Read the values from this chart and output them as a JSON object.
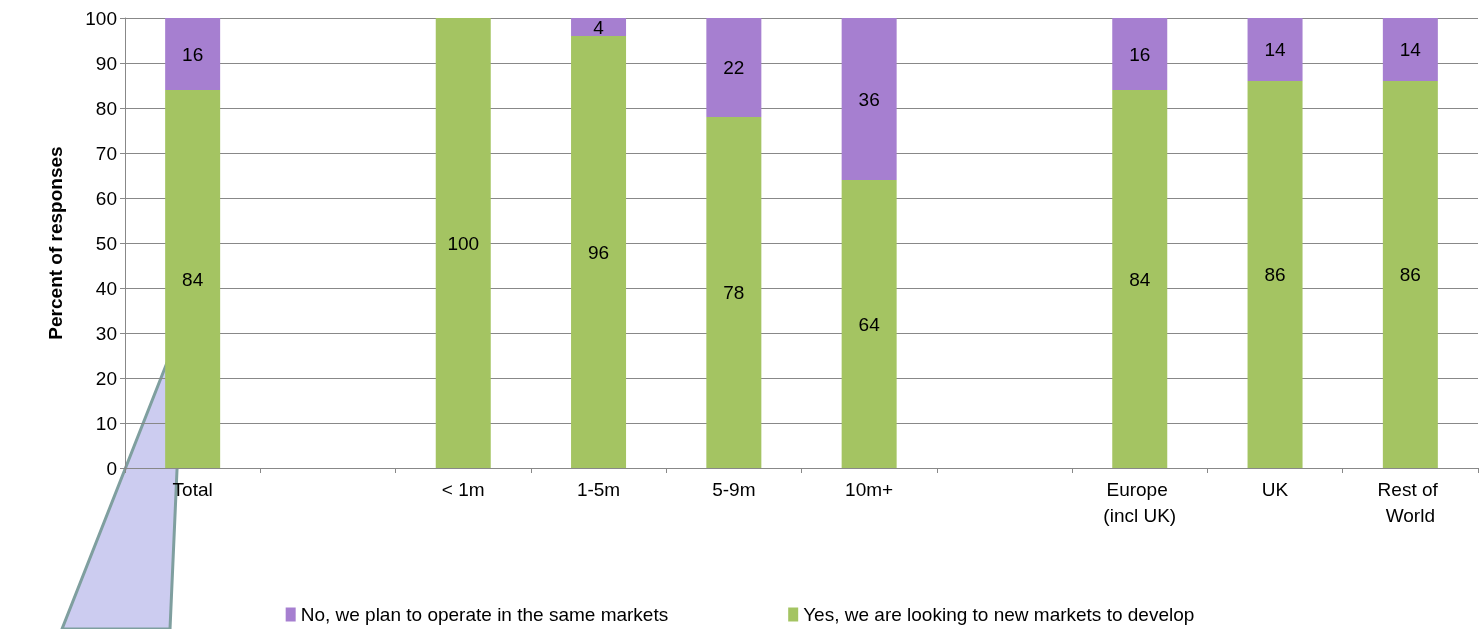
{
  "chart_data": {
    "type": "bar",
    "stacked": true,
    "ylabel": "Percent of responses",
    "categories": [
      "Total",
      null,
      "< 1m",
      "1-5m",
      "5-9m",
      "10m+",
      null,
      "Europe (incl UK)",
      "UK",
      "Rest of World"
    ],
    "series": [
      {
        "name": "Yes, we are looking to new markets to develop",
        "color": "#a4c462",
        "values": [
          84,
          null,
          100,
          96,
          78,
          64,
          null,
          84,
          86,
          86
        ]
      },
      {
        "name": "No, we plan to operate in the same markets",
        "color": "#a67fd0",
        "values": [
          16,
          null,
          null,
          4,
          22,
          36,
          null,
          16,
          14,
          14
        ]
      }
    ],
    "ylim": [
      0,
      100
    ],
    "yticks": [
      0,
      10,
      20,
      30,
      40,
      50,
      60,
      70,
      80,
      90,
      100
    ],
    "grid": "y",
    "legend": "bottom",
    "data_labels": true
  }
}
